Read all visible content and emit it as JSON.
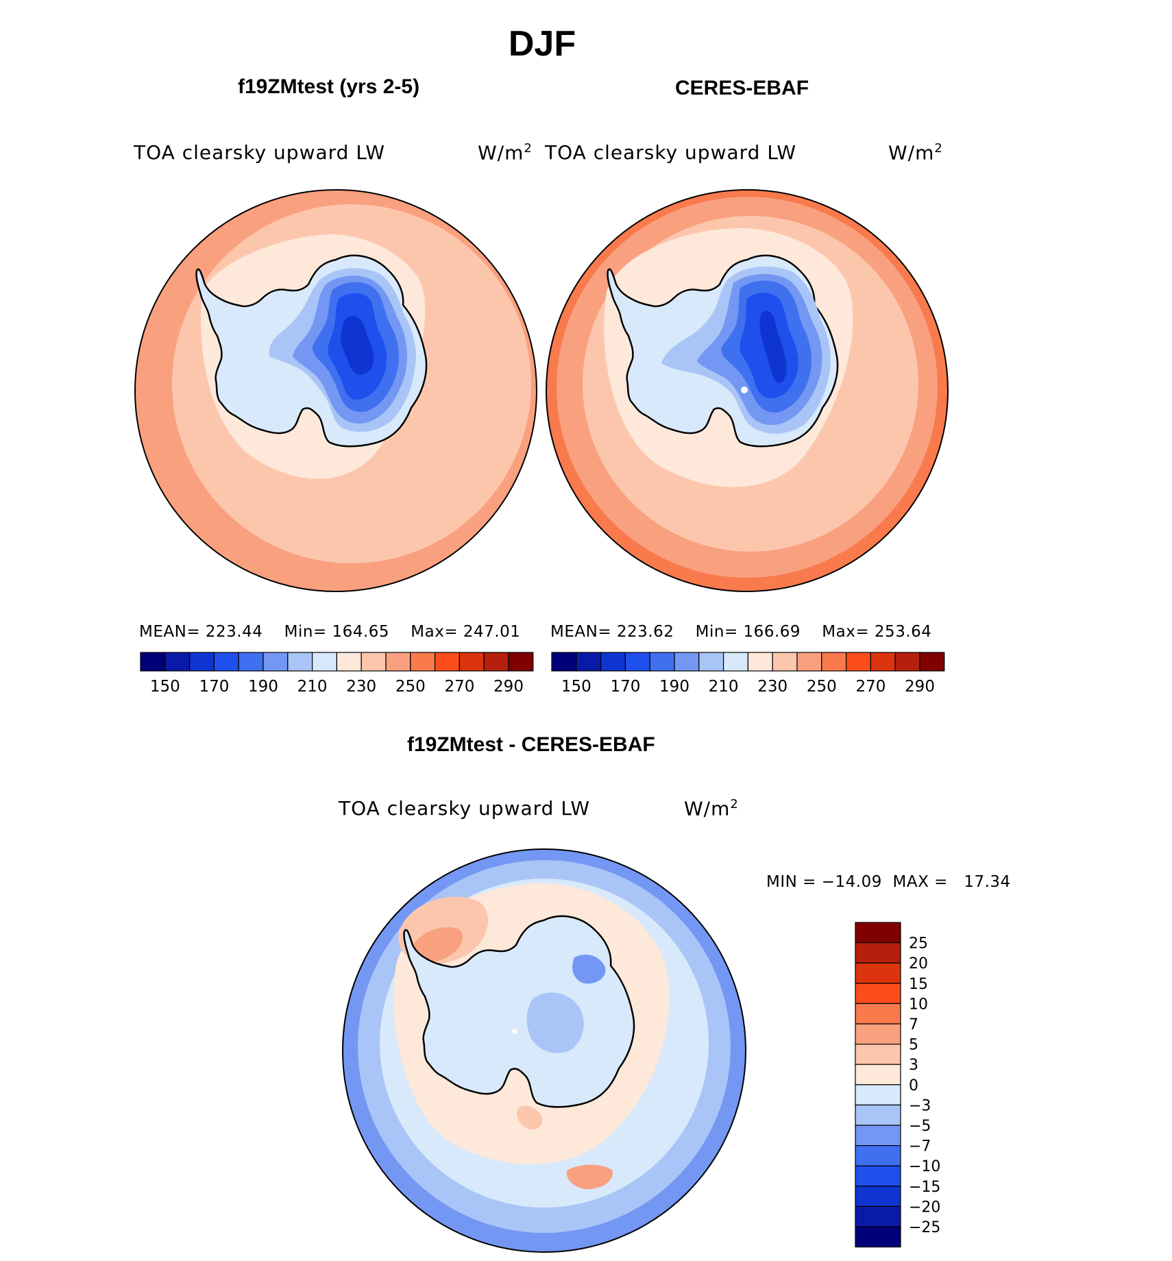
{
  "figure": {
    "title": "DJF"
  },
  "panels": [
    {
      "subtitle": "f19ZMtest (yrs 2-5)",
      "variable": "TOA clearsky upward LW",
      "units_base": "W/m",
      "units_exp": "2",
      "stats": {
        "mean_label": "MEAN=",
        "mean": "223.44",
        "min_label": "Min=",
        "min": "164.65",
        "max_label": "Max=",
        "max": "247.01"
      }
    },
    {
      "subtitle": "CERES-EBAF",
      "variable": "TOA clearsky upward LW",
      "units_base": "W/m",
      "units_exp": "2",
      "stats": {
        "mean_label": "MEAN=",
        "mean": "223.62",
        "min_label": "Min=",
        "min": "166.69",
        "max_label": "Max=",
        "max": "253.64"
      }
    },
    {
      "subtitle": "f19ZMtest - CERES-EBAF",
      "variable": "TOA clearsky upward LW",
      "units_base": "W/m",
      "units_exp": "2",
      "stats": {
        "min_label": "MIN =",
        "min": "−14.09",
        "max_label": "MAX =",
        "max": "17.34"
      }
    }
  ],
  "colorbars": {
    "absolute": {
      "colors": [
        "#00007a",
        "#0a1aa8",
        "#0f35d0",
        "#1f4fec",
        "#3f70f0",
        "#7397f2",
        "#a9c4f6",
        "#d8e9fb",
        "#fde8da",
        "#fcc6ad",
        "#f9a07f",
        "#f87a4d",
        "#fa4d1a",
        "#dc340e",
        "#b51f0c",
        "#800000"
      ],
      "tick_labels": [
        "150",
        "170",
        "190",
        "210",
        "230",
        "250",
        "270",
        "290"
      ]
    },
    "difference": {
      "colors": [
        "#800000",
        "#b51f0c",
        "#dc340e",
        "#fa4d1a",
        "#f87a4d",
        "#f9a07f",
        "#fcc6ad",
        "#fde8da",
        "#d8e9fb",
        "#a9c4f6",
        "#7397f2",
        "#3f70f0",
        "#1f4fec",
        "#0f35d0",
        "#0a1aa8",
        "#00007a"
      ],
      "tick_labels": [
        "25",
        "20",
        "15",
        "10",
        "7",
        "5",
        "3",
        "0",
        "−3",
        "−5",
        "−7",
        "−10",
        "−15",
        "−20",
        "−25"
      ]
    }
  }
}
